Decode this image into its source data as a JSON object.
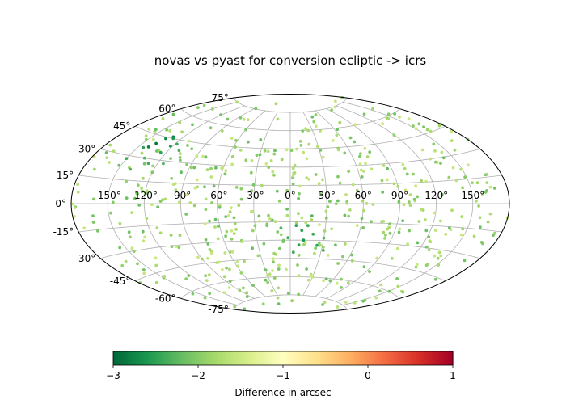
{
  "chart_data": {
    "type": "scatter",
    "projection": "aitoff",
    "title": "novas vs pyast for conversion ecliptic -> icrs",
    "x_tick_labels": [
      "-150°",
      "-120°",
      "-90°",
      "-60°",
      "-30°",
      "0°",
      "30°",
      "60°",
      "90°",
      "120°",
      "150°"
    ],
    "x_ticks_deg": [
      -150,
      -120,
      -90,
      -60,
      -30,
      0,
      30,
      60,
      90,
      120,
      150
    ],
    "y_tick_labels": [
      "-75°",
      "-60°",
      "-45°",
      "-30°",
      "-15°",
      "0°",
      "15°",
      "30°",
      "45°",
      "60°",
      "75°"
    ],
    "y_ticks_deg": [
      -75,
      -60,
      -45,
      -30,
      -15,
      0,
      15,
      30,
      45,
      60,
      75
    ],
    "grid": true,
    "colorbar": {
      "label": "Difference in arcsec",
      "colormap": "RdYlGn_r",
      "range": [
        -3,
        1
      ],
      "tick_labels": [
        "−3",
        "−2",
        "−1",
        "0",
        "1"
      ],
      "ticks": [
        -3,
        -2,
        -1,
        0,
        1
      ],
      "orientation": "horizontal",
      "position": "bottom"
    },
    "points": [
      {
        "lon": -141,
        "lat": 37,
        "value": -2.8
      },
      {
        "lon": -138,
        "lat": 40,
        "value": -2.9
      },
      {
        "lon": -135,
        "lat": 44,
        "value": -2.7
      },
      {
        "lon": -130,
        "lat": 46,
        "value": -2.8
      },
      {
        "lon": -128,
        "lat": 45,
        "value": -2.6
      },
      {
        "lon": -122,
        "lat": 40,
        "value": -2.6
      },
      {
        "lon": -145,
        "lat": 36,
        "value": -2.5
      },
      {
        "lon": -150,
        "lat": 28,
        "value": -2.4
      },
      {
        "lon": -125,
        "lat": 35,
        "value": -2.5
      },
      {
        "lon": -118,
        "lat": 42,
        "value": -2.4
      },
      {
        "lon": -135,
        "lat": 30,
        "value": -2.3
      },
      {
        "lon": -110,
        "lat": 38,
        "value": -2.3
      },
      {
        "lon": -140,
        "lat": 22,
        "value": -2.3
      },
      {
        "lon": -115,
        "lat": 28,
        "value": -2.3
      },
      {
        "lon": -128,
        "lat": 27,
        "value": -2.4
      },
      {
        "lon": 5,
        "lat": -18,
        "value": -2.5
      },
      {
        "lon": 10,
        "lat": -22,
        "value": -2.5
      },
      {
        "lon": 15,
        "lat": -18,
        "value": -2.4
      },
      {
        "lon": 12,
        "lat": -30,
        "value": -2.6
      },
      {
        "lon": 8,
        "lat": -34,
        "value": -2.5
      },
      {
        "lon": 20,
        "lat": -25,
        "value": -2.4
      },
      {
        "lon": -2,
        "lat": -28,
        "value": -2.4
      },
      {
        "lon": 25,
        "lat": -34,
        "value": -2.5
      },
      {
        "lon": 18,
        "lat": -10,
        "value": -2.3
      },
      {
        "lon": 3,
        "lat": -40,
        "value": -2.4
      },
      {
        "lon": 30,
        "lat": -28,
        "value": -2.3
      },
      {
        "lon": -8,
        "lat": -20,
        "value": -2.3
      },
      {
        "lon": 32,
        "lat": -38,
        "value": -2.4
      }
    ],
    "background_point_count": 560,
    "background_value_range": [
      -2.2,
      -1.5
    ]
  }
}
